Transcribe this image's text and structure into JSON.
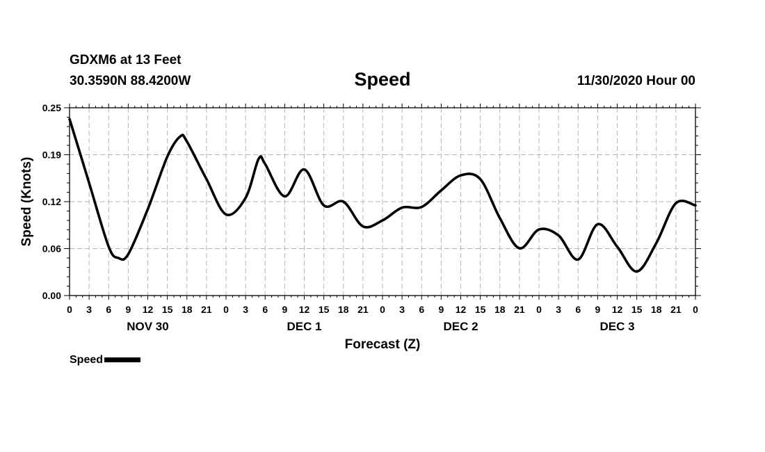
{
  "header": {
    "station": "GDXM6 at 13 Feet",
    "coords": "30.3590N 88.4200W",
    "title": "Speed",
    "run_time": "11/30/2020 Hour 00"
  },
  "legend": {
    "label": "Speed"
  },
  "chart_data": {
    "type": "line",
    "title": "Speed",
    "xlabel": "Forecast (Z)",
    "ylabel": "Speed (Knots)",
    "xlim": [
      0,
      96
    ],
    "ylim": [
      0,
      0.25
    ],
    "grid": true,
    "yticks": [
      "0.00",
      "0.06",
      "0.12",
      "0.19",
      "0.25"
    ],
    "xtick_labels": [
      "0",
      "3",
      "6",
      "9",
      "12",
      "15",
      "18",
      "21",
      "0",
      "3",
      "6",
      "9",
      "12",
      "15",
      "18",
      "21",
      "0",
      "3",
      "6",
      "9",
      "12",
      "15",
      "18",
      "21",
      "0",
      "3",
      "6",
      "9",
      "12",
      "15",
      "18",
      "21",
      "0"
    ],
    "day_labels": [
      {
        "label": "NOV 30",
        "hour": 12
      },
      {
        "label": "DEC 1",
        "hour": 36
      },
      {
        "label": "DEC 2",
        "hour": 60
      },
      {
        "label": "DEC 3",
        "hour": 84
      }
    ],
    "series": [
      {
        "name": "Speed",
        "color": "#000000",
        "x": [
          0,
          3,
          6,
          7.5,
          9,
          12,
          15,
          17,
          18,
          21,
          24,
          27,
          29,
          30,
          33,
          36,
          39,
          42,
          45,
          48,
          51,
          54,
          57,
          60,
          63,
          66,
          69,
          72,
          75,
          78,
          81,
          84,
          87,
          90,
          93,
          96
        ],
        "y": [
          0.235,
          0.15,
          0.065,
          0.05,
          0.055,
          0.115,
          0.185,
          0.212,
          0.205,
          0.155,
          0.108,
          0.13,
          0.182,
          0.175,
          0.132,
          0.168,
          0.12,
          0.125,
          0.092,
          0.1,
          0.117,
          0.118,
          0.14,
          0.16,
          0.155,
          0.103,
          0.063,
          0.088,
          0.08,
          0.048,
          0.095,
          0.065,
          0.032,
          0.07,
          0.123,
          0.12
        ]
      }
    ]
  }
}
